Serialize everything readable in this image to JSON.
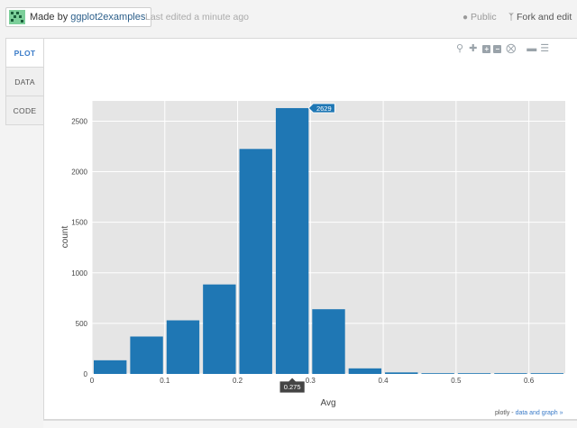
{
  "header": {
    "made_by_prefix": "Made by",
    "made_by_user": "ggplot2examples",
    "last_edited": "Last edited a minute ago",
    "public_label": "Public",
    "fork_label": "Fork and edit"
  },
  "tabs": [
    {
      "label": "PLOT",
      "active": true
    },
    {
      "label": "DATA",
      "active": false
    },
    {
      "label": "CODE",
      "active": false
    }
  ],
  "toolbar_icons": [
    "zoom-icon",
    "pan-icon",
    "zoom-in-icon",
    "zoom-out-icon",
    "autoscale-icon",
    "hover-closest-icon",
    "hover-compare-icon"
  ],
  "colors": {
    "bar": "#1f77b4",
    "plot_bg": "#e5e5e5",
    "grid": "#ffffff",
    "accent": "#3a7bc8"
  },
  "chart_data": {
    "type": "bar",
    "title": "",
    "xlabel": "Avg",
    "ylabel": "count",
    "xlim": [
      0,
      0.65
    ],
    "ylim": [
      0,
      2700
    ],
    "x_ticks": [
      0,
      0.1,
      0.2,
      0.3,
      0.4,
      0.5,
      0.6
    ],
    "x_tick_labels": [
      "0",
      "0.1",
      "0.2",
      "0.3",
      "0.4",
      "0.5",
      "0.6"
    ],
    "y_ticks": [
      0,
      500,
      1000,
      1500,
      2000,
      2500
    ],
    "y_tick_labels": [
      "0",
      "500",
      "1000",
      "1500",
      "2000",
      "2500"
    ],
    "bin_width": 0.05,
    "bins": [
      {
        "x": 0.025,
        "count": 135
      },
      {
        "x": 0.075,
        "count": 370
      },
      {
        "x": 0.125,
        "count": 530
      },
      {
        "x": 0.175,
        "count": 885
      },
      {
        "x": 0.225,
        "count": 2225
      },
      {
        "x": 0.275,
        "count": 2629
      },
      {
        "x": 0.325,
        "count": 640
      },
      {
        "x": 0.375,
        "count": 55
      },
      {
        "x": 0.425,
        "count": 15
      },
      {
        "x": 0.475,
        "count": 3
      },
      {
        "x": 0.525,
        "count": 2
      },
      {
        "x": 0.575,
        "count": 1
      },
      {
        "x": 0.625,
        "count": 1
      }
    ],
    "hover": {
      "x_label": "0.275",
      "y_label": "2629",
      "bin_index": 5
    }
  },
  "footer": {
    "brand": "plotly",
    "separator": " - ",
    "link": "data and graph »"
  }
}
